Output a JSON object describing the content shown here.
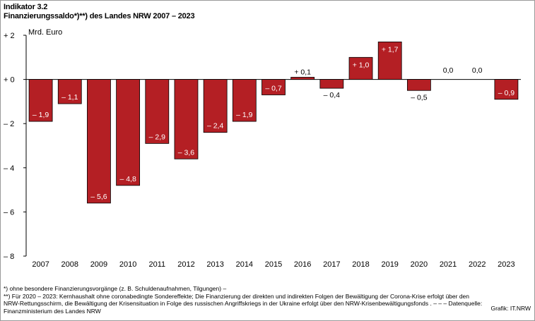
{
  "header": {
    "indicator": "Indikator 3.2",
    "title": "Finanzierungssaldo*)**) des Landes NRW 2007 – 2023"
  },
  "chart_data": {
    "type": "bar",
    "ylabel": "Mrd. Euro",
    "ylim": [
      -8,
      2
    ],
    "yticks": [
      2,
      0,
      -2,
      -4,
      -6,
      -8
    ],
    "ytick_labels": [
      "+ 2",
      "+ 0",
      "– 2",
      "– 4",
      "– 6",
      "– 8"
    ],
    "categories": [
      "2007",
      "2008",
      "2009",
      "2010",
      "2011",
      "2012",
      "2013",
      "2014",
      "2015",
      "2016",
      "2017",
      "2018",
      "2019",
      "2020",
      "2021",
      "2022",
      "2023"
    ],
    "values": [
      -1.9,
      -1.1,
      -5.6,
      -4.8,
      -2.9,
      -3.6,
      -2.4,
      -1.9,
      -0.7,
      0.1,
      -0.4,
      1.0,
      1.7,
      -0.5,
      0.0,
      0.0,
      -0.9
    ],
    "data_labels": [
      "– 1,9",
      "– 1,1",
      "– 5,6",
      "– 4,8",
      "– 2,9",
      "– 3,6",
      "– 2,4",
      "– 1,9",
      "– 0,7",
      "+ 0,1",
      "– 0,4",
      "+ 1,0",
      "+ 1,7",
      "– 0,5",
      "0,0",
      "0,0",
      "– 0,9"
    ],
    "bar_color": "#b41f24",
    "grid": false
  },
  "footnotes": [
    "*) ohne  besondere  Finanzierungsvorgänge  (z.  B.  Schuldenaufnahmen,  Tilgungen)  –",
    "**) Für 2020 – 2023: Kernhaushalt ohne  coronabedingte  Sondereffekte; Die Finanzierung der direkten und indirekten Folgen der Bewältigung  der Corona-Krise  erfolgt über den",
    "NRW-Rettungsschirm, die Bewältigung der Krisensituation in Folge des russischen Angriffskriegs in der Ukraine erfolgt über den NRW-Krisenbewältigungsfonds . – – – Datenquelle:",
    "Finanzministerium des Landes NRW"
  ],
  "credit": "Grafik: IT.NRW"
}
